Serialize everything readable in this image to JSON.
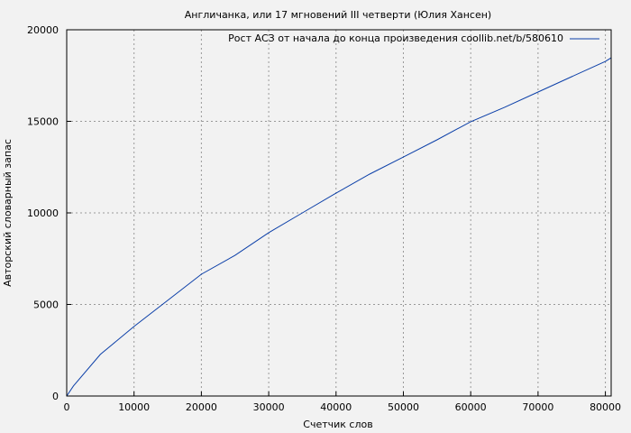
{
  "chart_data": {
    "type": "line",
    "title": "Англичанка, или 17 мгновений III четверти (Юлия Хансен)",
    "xlabel": "Счетчик слов",
    "ylabel": "Авторский словарный запас",
    "xlim": [
      0,
      80860
    ],
    "ylim": [
      0,
      20000
    ],
    "xticks": [
      0,
      10000,
      20000,
      30000,
      40000,
      50000,
      60000,
      70000,
      80000
    ],
    "yticks": [
      0,
      5000,
      10000,
      15000,
      20000
    ],
    "grid": true,
    "legend_position": "top-right",
    "series": [
      {
        "name": "Рост АСЗ от начала до конца произведения coollib.net/b/580610",
        "color": "#0b3fa8",
        "x": [
          0,
          1000,
          5000,
          10000,
          15000,
          20000,
          25000,
          30000,
          35000,
          40000,
          45000,
          50000,
          55000,
          60000,
          65000,
          70000,
          75000,
          80000,
          80860
        ],
        "y": [
          0,
          550,
          2270,
          3800,
          5220,
          6650,
          7680,
          8920,
          10000,
          11080,
          12120,
          13050,
          13990,
          14980,
          15760,
          16600,
          17440,
          18270,
          18470
        ]
      }
    ]
  }
}
